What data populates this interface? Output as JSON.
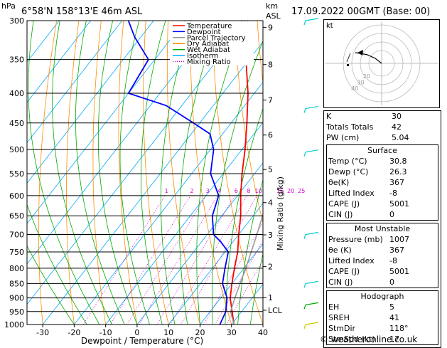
{
  "header": {
    "hpa_label": "hPa",
    "location": "6°58'N 158°13'E 46m ASL",
    "km_label": "km",
    "asl_label": "ASL",
    "datetime": "17.09.2022 00GMT (Base: 00)"
  },
  "legend": [
    {
      "label": "Temperature",
      "color": "#ff0000"
    },
    {
      "label": "Dewpoint",
      "color": "#0000ff"
    },
    {
      "label": "Parcel Trajectory",
      "color": "#999999"
    },
    {
      "label": "Dry Adiabat",
      "color": "#ff8c00"
    },
    {
      "label": "Wet Adiabat",
      "color": "#00aa00"
    },
    {
      "label": "Isotherm",
      "color": "#00aaff"
    },
    {
      "label": "Mixing Ratio",
      "color": "#cc00cc"
    }
  ],
  "chart_data": {
    "type": "line",
    "title": "",
    "xlabel": "Dewpoint / Temperature (°C)",
    "ylabel": "hPa",
    "y2label": "Mixing Ratio (g/kg)",
    "xlim": [
      -35,
      40
    ],
    "ylim": [
      1000,
      300
    ],
    "x_ticks": [
      -30,
      -20,
      -10,
      0,
      10,
      20,
      30,
      40
    ],
    "pressure_levels": [
      300,
      350,
      400,
      450,
      500,
      550,
      600,
      650,
      700,
      750,
      800,
      850,
      900,
      950,
      1000
    ],
    "km_ticks": [
      {
        "label": "9",
        "p": 308
      },
      {
        "label": "8",
        "p": 357
      },
      {
        "label": "7",
        "p": 411
      },
      {
        "label": "6",
        "p": 472
      },
      {
        "label": "5",
        "p": 541
      },
      {
        "label": "4",
        "p": 617
      },
      {
        "label": "3",
        "p": 701
      },
      {
        "label": "2",
        "p": 795
      },
      {
        "label": "1",
        "p": 899
      },
      {
        "label": "LCL",
        "p": 945
      }
    ],
    "mixing_ratio_labels": [
      "1",
      "2",
      "3",
      "4",
      "6",
      "8",
      "10",
      "16",
      "20",
      "25"
    ],
    "series": [
      {
        "name": "Temperature",
        "color": "#ff0000",
        "points": [
          [
            30.8,
            1000
          ],
          [
            27,
            950
          ],
          [
            23,
            900
          ],
          [
            20,
            850
          ],
          [
            17,
            800
          ],
          [
            14,
            750
          ],
          [
            10,
            700
          ],
          [
            6,
            650
          ],
          [
            1,
            600
          ],
          [
            -4,
            550
          ],
          [
            -9,
            500
          ],
          [
            -15,
            450
          ],
          [
            -22,
            400
          ],
          [
            -31,
            350
          ],
          [
            -42,
            300
          ]
        ]
      },
      {
        "name": "Dewpoint",
        "color": "#0000ff",
        "points": [
          [
            26.3,
            1000
          ],
          [
            25,
            950
          ],
          [
            22,
            900
          ],
          [
            17,
            850
          ],
          [
            14,
            800
          ],
          [
            11,
            750
          ],
          [
            6,
            720
          ],
          [
            2,
            700
          ],
          [
            -3,
            650
          ],
          [
            -6,
            600
          ],
          [
            -14,
            550
          ],
          [
            -19,
            500
          ],
          [
            -24,
            470
          ],
          [
            -32,
            450
          ],
          [
            -45,
            420
          ],
          [
            -60,
            400
          ],
          [
            -62,
            350
          ],
          [
            -72,
            320
          ],
          [
            -78,
            300
          ]
        ]
      },
      {
        "name": "Parcel Trajectory",
        "color": "#999999",
        "points": [
          [
            30.8,
            1000
          ],
          [
            26.5,
            950
          ],
          [
            24.5,
            900
          ],
          [
            22.6,
            850
          ],
          [
            20.6,
            800
          ],
          [
            18.3,
            750
          ],
          [
            15.8,
            700
          ],
          [
            13,
            650
          ],
          [
            9.8,
            600
          ],
          [
            6.1,
            550
          ],
          [
            1.7,
            500
          ],
          [
            -3.6,
            450
          ],
          [
            -10,
            400
          ],
          [
            -18.5,
            350
          ],
          [
            -29,
            300
          ]
        ]
      }
    ]
  },
  "hodograph": {
    "label": "kt",
    "ring_labels": [
      "20",
      "30",
      "40"
    ]
  },
  "wind_barbs_colors": [
    "#00cccc",
    "#00aa00",
    "#cccc00"
  ],
  "indices": {
    "rows": [
      {
        "label": "K",
        "value": "30"
      },
      {
        "label": "Totals Totals",
        "value": "42"
      },
      {
        "label": "PW (cm)",
        "value": "5.04"
      }
    ]
  },
  "surface": {
    "title": "Surface",
    "rows": [
      {
        "label": "Temp (°C)",
        "value": "30.8"
      },
      {
        "label": "Dewp (°C)",
        "value": "26.3"
      },
      {
        "label": "θe(K)",
        "value": "367"
      },
      {
        "label": "Lifted Index",
        "value": "-8"
      },
      {
        "label": "CAPE (J)",
        "value": "5001"
      },
      {
        "label": "CIN (J)",
        "value": "0"
      }
    ]
  },
  "most_unstable": {
    "title": "Most Unstable",
    "rows": [
      {
        "label": "Pressure (mb)",
        "value": "1007"
      },
      {
        "label": "θe (K)",
        "value": "367"
      },
      {
        "label": "Lifted Index",
        "value": "-8"
      },
      {
        "label": "CAPE (J)",
        "value": "5001"
      },
      {
        "label": "CIN (J)",
        "value": "0"
      }
    ]
  },
  "hodograph_table": {
    "title": "Hodograph",
    "rows": [
      {
        "label": "EH",
        "value": "5"
      },
      {
        "label": "SREH",
        "value": "41"
      },
      {
        "label": "StmDir",
        "value": "118°"
      },
      {
        "label": "StmSpd (kt)",
        "value": "17"
      }
    ]
  },
  "copyright": "© weatheronline.co.uk"
}
